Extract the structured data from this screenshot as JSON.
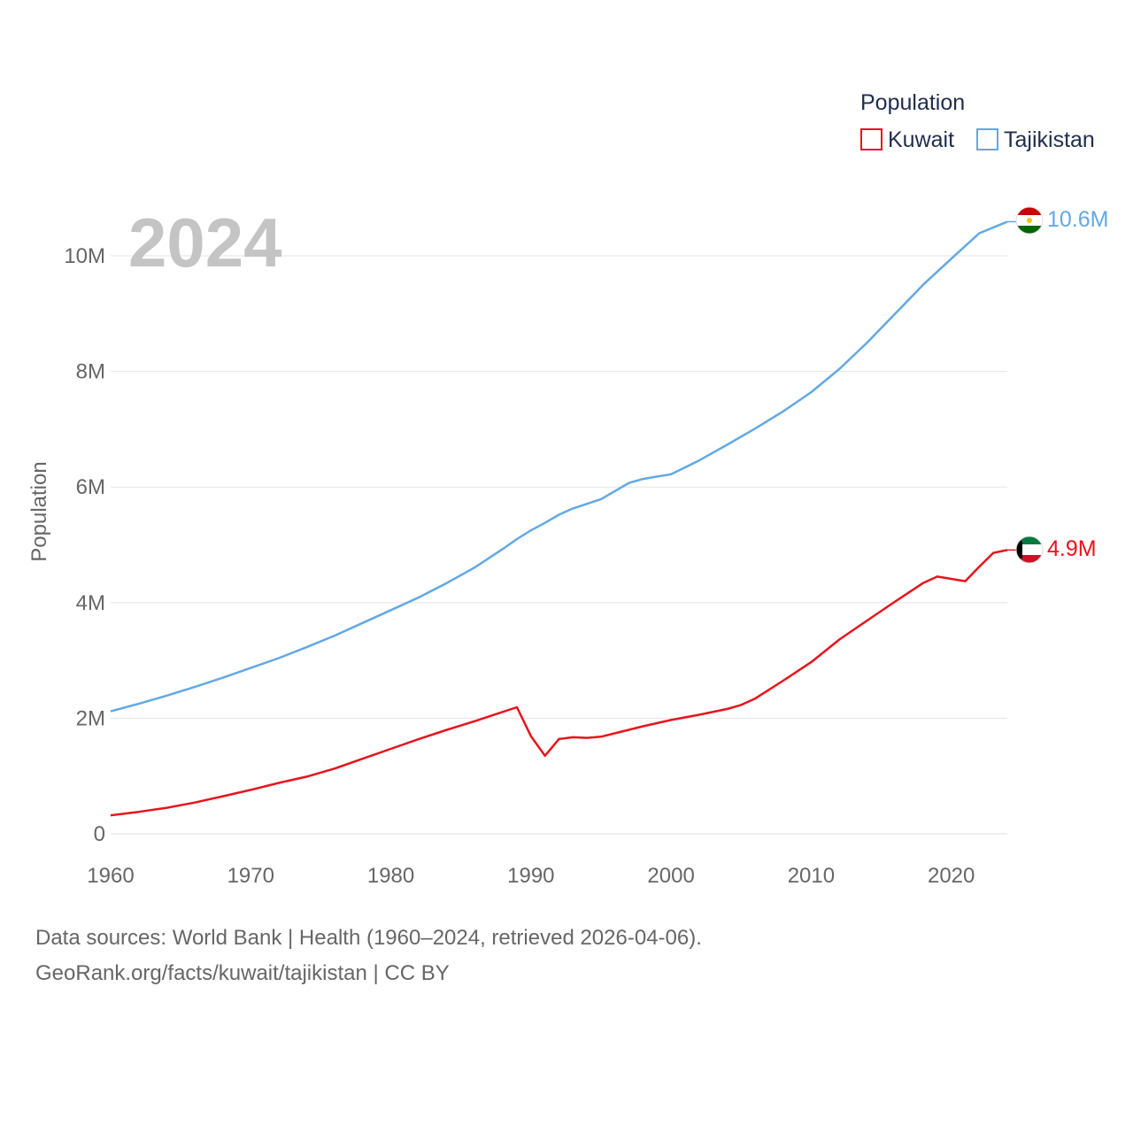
{
  "chart_data": {
    "type": "line",
    "title": "2024",
    "xlabel": "",
    "ylabel": "Population",
    "xlim": [
      1960,
      2024
    ],
    "ylim": [
      0,
      10000000
    ],
    "x_ticks": [
      1960,
      1970,
      1980,
      1990,
      2000,
      2010,
      2020
    ],
    "x_tick_labels": [
      "1960",
      "1970",
      "1980",
      "1990",
      "2000",
      "2010",
      "2020"
    ],
    "y_ticks": [
      0,
      2000000,
      4000000,
      6000000,
      8000000,
      10000000
    ],
    "y_tick_labels": [
      "0",
      "2M",
      "4M",
      "6M",
      "8M",
      "10M"
    ],
    "grid": true,
    "legend": {
      "title": "Population",
      "position": "top-right"
    },
    "series": [
      {
        "name": "Kuwait",
        "color": "#e8131b",
        "end_label": "4.9M",
        "flag": "kuwait-flag",
        "points": [
          [
            1960,
            320000
          ],
          [
            1962,
            380000
          ],
          [
            1964,
            450000
          ],
          [
            1966,
            540000
          ],
          [
            1968,
            650000
          ],
          [
            1970,
            760000
          ],
          [
            1972,
            880000
          ],
          [
            1974,
            990000
          ],
          [
            1976,
            1130000
          ],
          [
            1978,
            1300000
          ],
          [
            1980,
            1470000
          ],
          [
            1982,
            1640000
          ],
          [
            1984,
            1800000
          ],
          [
            1986,
            1950000
          ],
          [
            1988,
            2110000
          ],
          [
            1989,
            2190000
          ],
          [
            1990,
            1690000
          ],
          [
            1991,
            1350000
          ],
          [
            1992,
            1640000
          ],
          [
            1993,
            1670000
          ],
          [
            1994,
            1660000
          ],
          [
            1995,
            1680000
          ],
          [
            1996,
            1740000
          ],
          [
            1998,
            1860000
          ],
          [
            2000,
            1970000
          ],
          [
            2002,
            2060000
          ],
          [
            2004,
            2160000
          ],
          [
            2005,
            2230000
          ],
          [
            2006,
            2340000
          ],
          [
            2008,
            2650000
          ],
          [
            2010,
            2970000
          ],
          [
            2012,
            3360000
          ],
          [
            2014,
            3690000
          ],
          [
            2016,
            4020000
          ],
          [
            2018,
            4340000
          ],
          [
            2019,
            4450000
          ],
          [
            2020,
            4410000
          ],
          [
            2021,
            4370000
          ],
          [
            2022,
            4620000
          ],
          [
            2023,
            4860000
          ],
          [
            2024,
            4910000
          ]
        ]
      },
      {
        "name": "Tajikistan",
        "color": "#62a8e5",
        "end_label": "10.6M",
        "flag": "tajikistan-flag",
        "points": [
          [
            1960,
            2120000
          ],
          [
            1962,
            2250000
          ],
          [
            1964,
            2390000
          ],
          [
            1966,
            2540000
          ],
          [
            1968,
            2700000
          ],
          [
            1970,
            2870000
          ],
          [
            1972,
            3040000
          ],
          [
            1974,
            3230000
          ],
          [
            1976,
            3430000
          ],
          [
            1978,
            3650000
          ],
          [
            1980,
            3870000
          ],
          [
            1982,
            4090000
          ],
          [
            1984,
            4340000
          ],
          [
            1986,
            4610000
          ],
          [
            1988,
            4930000
          ],
          [
            1989,
            5100000
          ],
          [
            1990,
            5250000
          ],
          [
            1991,
            5380000
          ],
          [
            1992,
            5520000
          ],
          [
            1993,
            5630000
          ],
          [
            1995,
            5790000
          ],
          [
            1996,
            5930000
          ],
          [
            1997,
            6070000
          ],
          [
            1998,
            6140000
          ],
          [
            1999,
            6180000
          ],
          [
            2000,
            6220000
          ],
          [
            2002,
            6460000
          ],
          [
            2004,
            6730000
          ],
          [
            2006,
            7010000
          ],
          [
            2008,
            7310000
          ],
          [
            2010,
            7640000
          ],
          [
            2012,
            8040000
          ],
          [
            2014,
            8500000
          ],
          [
            2016,
            9000000
          ],
          [
            2018,
            9500000
          ],
          [
            2020,
            9950000
          ],
          [
            2022,
            10390000
          ],
          [
            2024,
            10590000
          ]
        ]
      }
    ]
  },
  "footer": {
    "source_line": "Data sources: World Bank | Health (1960–2024, retrieved 2026-04-06).",
    "credit_line": "GeoRank.org/facts/kuwait/tajikistan | CC BY"
  }
}
